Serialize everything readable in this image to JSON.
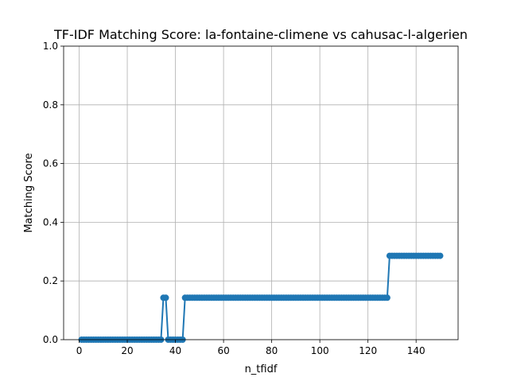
{
  "chart_data": {
    "type": "line",
    "title": "TF-IDF Matching Score: la-fontaine-climene vs cahusac-l-algerien",
    "xlabel": "n_tfidf",
    "ylabel": "Matching Score",
    "xlim": [
      -6.45,
      157.45
    ],
    "ylim": [
      0,
      1.0
    ],
    "xticks": [
      0,
      20,
      40,
      60,
      80,
      100,
      120,
      140
    ],
    "yticks": [
      0.0,
      0.2,
      0.4,
      0.6,
      0.8,
      1.0
    ],
    "xtick_labels": [
      "0",
      "20",
      "40",
      "60",
      "80",
      "100",
      "120",
      "140"
    ],
    "ytick_labels": [
      "0.0",
      "0.2",
      "0.4",
      "0.6",
      "0.8",
      "1.0"
    ],
    "grid": true,
    "marker": "circle",
    "color": "#1f77b4",
    "series": [
      {
        "x": [
          1,
          2,
          3,
          4,
          5,
          6,
          7,
          8,
          9,
          10,
          11,
          12,
          13,
          14,
          15,
          16,
          17,
          18,
          19,
          20,
          21,
          22,
          23,
          24,
          25,
          26,
          27,
          28,
          29,
          30,
          31,
          32,
          33,
          34,
          35,
          36,
          37,
          38,
          39,
          40,
          41,
          42,
          43,
          44,
          45,
          46,
          47,
          48,
          49,
          50,
          51,
          52,
          53,
          54,
          55,
          56,
          57,
          58,
          59,
          60,
          61,
          62,
          63,
          64,
          65,
          66,
          67,
          68,
          69,
          70,
          71,
          72,
          73,
          74,
          75,
          76,
          77,
          78,
          79,
          80,
          81,
          82,
          83,
          84,
          85,
          86,
          87,
          88,
          89,
          90,
          91,
          92,
          93,
          94,
          95,
          96,
          97,
          98,
          99,
          100,
          101,
          102,
          103,
          104,
          105,
          106,
          107,
          108,
          109,
          110,
          111,
          112,
          113,
          114,
          115,
          116,
          117,
          118,
          119,
          120,
          121,
          122,
          123,
          124,
          125,
          126,
          127,
          128,
          129,
          130,
          131,
          132,
          133,
          134,
          135,
          136,
          137,
          138,
          139,
          140,
          141,
          142,
          143,
          144,
          145,
          146,
          147,
          148,
          149,
          150
        ],
        "y": [
          0,
          0,
          0,
          0,
          0,
          0,
          0,
          0,
          0,
          0,
          0,
          0,
          0,
          0,
          0,
          0,
          0,
          0,
          0,
          0,
          0,
          0,
          0,
          0,
          0,
          0,
          0,
          0,
          0,
          0,
          0,
          0,
          0,
          0,
          0.1429,
          0.1429,
          0,
          0,
          0,
          0,
          0,
          0,
          0,
          0.1429,
          0.1429,
          0.1429,
          0.1429,
          0.1429,
          0.1429,
          0.1429,
          0.1429,
          0.1429,
          0.1429,
          0.1429,
          0.1429,
          0.1429,
          0.1429,
          0.1429,
          0.1429,
          0.1429,
          0.1429,
          0.1429,
          0.1429,
          0.1429,
          0.1429,
          0.1429,
          0.1429,
          0.1429,
          0.1429,
          0.1429,
          0.1429,
          0.1429,
          0.1429,
          0.1429,
          0.1429,
          0.1429,
          0.1429,
          0.1429,
          0.1429,
          0.1429,
          0.1429,
          0.1429,
          0.1429,
          0.1429,
          0.1429,
          0.1429,
          0.1429,
          0.1429,
          0.1429,
          0.1429,
          0.1429,
          0.1429,
          0.1429,
          0.1429,
          0.1429,
          0.1429,
          0.1429,
          0.1429,
          0.1429,
          0.1429,
          0.1429,
          0.1429,
          0.1429,
          0.1429,
          0.1429,
          0.1429,
          0.1429,
          0.1429,
          0.1429,
          0.1429,
          0.1429,
          0.1429,
          0.1429,
          0.1429,
          0.1429,
          0.1429,
          0.1429,
          0.1429,
          0.1429,
          0.1429,
          0.1429,
          0.1429,
          0.1429,
          0.1429,
          0.1429,
          0.1429,
          0.1429,
          0.1429,
          0.2857,
          0.2857,
          0.2857,
          0.2857,
          0.2857,
          0.2857,
          0.2857,
          0.2857,
          0.2857,
          0.2857,
          0.2857,
          0.2857,
          0.2857,
          0.2857,
          0.2857,
          0.2857,
          0.2857,
          0.2857,
          0.2857,
          0.2857,
          0.2857,
          0.2857
        ]
      }
    ]
  }
}
